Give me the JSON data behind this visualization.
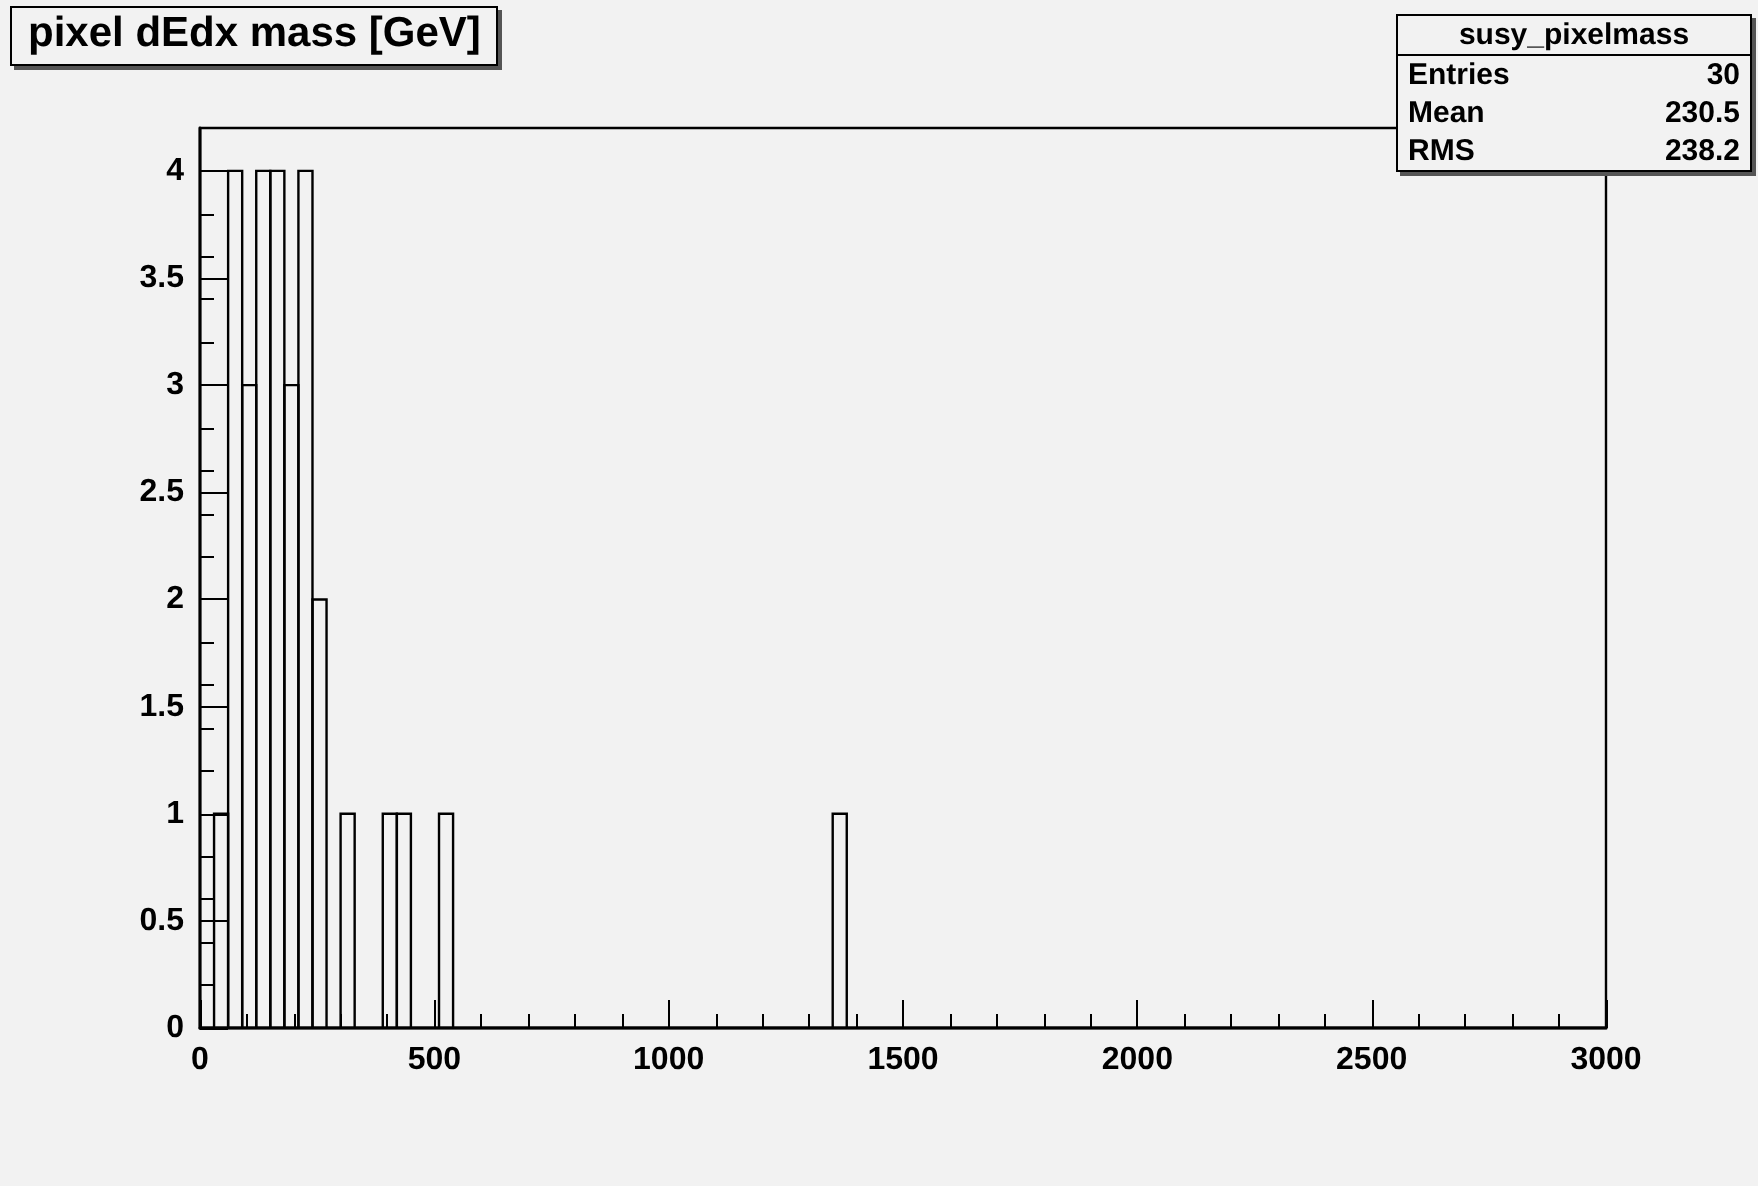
{
  "chart_data": {
    "type": "histogram",
    "title": "pixel dEdx mass [GeV]",
    "annotations": [
      "susy_pixelmass",
      "Entries 30",
      "Mean 230.5",
      "RMS 238.2"
    ],
    "bins": [
      0,
      30,
      60,
      90,
      120,
      150,
      180,
      210,
      240,
      270,
      300,
      330,
      360,
      390,
      420,
      450,
      480,
      510,
      540,
      570,
      600,
      630,
      660,
      690,
      720,
      750,
      780,
      810,
      840,
      870,
      900,
      930,
      960,
      990,
      1020,
      1050,
      1080,
      1110,
      1140,
      1170,
      1200,
      1230,
      1260,
      1290,
      1320,
      1350,
      1380,
      1410,
      1440,
      1470,
      1500,
      1530,
      1560,
      1590,
      1620,
      1650,
      1680,
      1710,
      1740,
      1770,
      1800,
      1830,
      1860,
      1890,
      1920,
      1950,
      1980,
      2010,
      2040,
      2070,
      2100,
      2130,
      2160,
      2190,
      2220,
      2250,
      2280,
      2310,
      2340,
      2370,
      2400,
      2430,
      2460,
      2490,
      2520,
      2550,
      2580,
      2610,
      2640,
      2670,
      2700,
      2730,
      2760,
      2790,
      2820,
      2850,
      2880,
      2910,
      2940,
      2970,
      3000
    ],
    "values": [
      0,
      1,
      4,
      3,
      4,
      4,
      3,
      4,
      2,
      0,
      1,
      0,
      0,
      1,
      1,
      0,
      0,
      1,
      0,
      0,
      0,
      0,
      0,
      0,
      0,
      0,
      0,
      0,
      0,
      0,
      0,
      0,
      0,
      0,
      0,
      0,
      0,
      0,
      0,
      0,
      0,
      0,
      0,
      0,
      0,
      1,
      0,
      0,
      0,
      0,
      0,
      0,
      0,
      0,
      0,
      0,
      0,
      0,
      0,
      0,
      0,
      0,
      0,
      0,
      0,
      0,
      0,
      0,
      0,
      0,
      0,
      0,
      0,
      0,
      0,
      0,
      0,
      0,
      0,
      0,
      0,
      0,
      0,
      0,
      0,
      0,
      0,
      0,
      0,
      0,
      0,
      0,
      0,
      0,
      0,
      0,
      0,
      0,
      0,
      0
    ],
    "color": "#000000",
    "xlim": [
      0,
      3000
    ],
    "xticks": [
      0,
      500,
      1000,
      1500,
      2000,
      2500,
      3000
    ],
    "ylim": [
      0,
      4.2
    ],
    "yticks": [
      0,
      0.5,
      1,
      1.5,
      2,
      2.5,
      3,
      3.5,
      4
    ],
    "grid": false
  }
}
